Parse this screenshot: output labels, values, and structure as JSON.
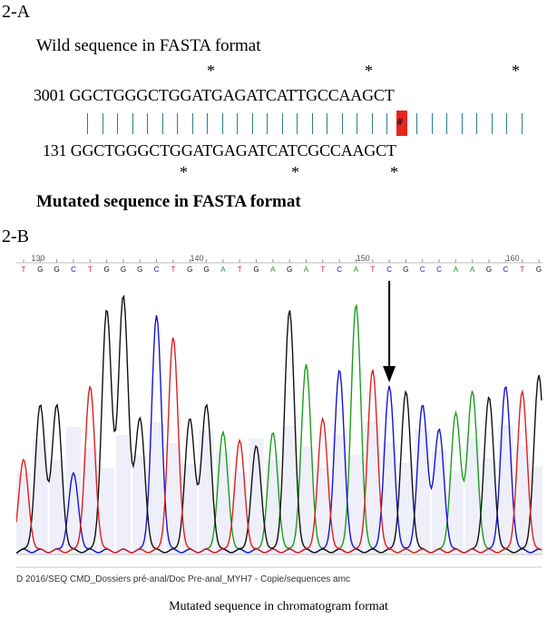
{
  "panel_a": {
    "label": "2-A",
    "wild_title": "Wild sequence in FASTA format",
    "wild_line": "3001 GGCTGGGCTGGATGAGATCATTGCCAAGCT",
    "mut_line": "131 GGCTGGGCTGGATGAGATCATCGCCAAGCT",
    "mut_title": "Mutated sequence in FASTA format",
    "star": "*",
    "mismatch_marker": "#",
    "wild_stars_count": 3,
    "mut_stars_count": 3
  },
  "panel_b": {
    "label": "2-B",
    "ruler_labels": [
      "130",
      "140",
      "150",
      "160"
    ],
    "bases": "TGGCTGGGCTGGATGAGATCATCGCCAAGCTG",
    "path_text": "D 2016/SEQ CMD_Dossiers pré-anal/Doc Pre-anal_MYH7 - Copie/sequences amc",
    "caption": "Mutated sequence in chromatogram format"
  },
  "colors": {
    "A": "#1a9e1a",
    "C": "#1414d4",
    "G": "#111111",
    "T": "#e01e1e",
    "alignment": "#2b7f86",
    "mismatch": "#e8231d",
    "shading": "#dcdcf2"
  }
}
